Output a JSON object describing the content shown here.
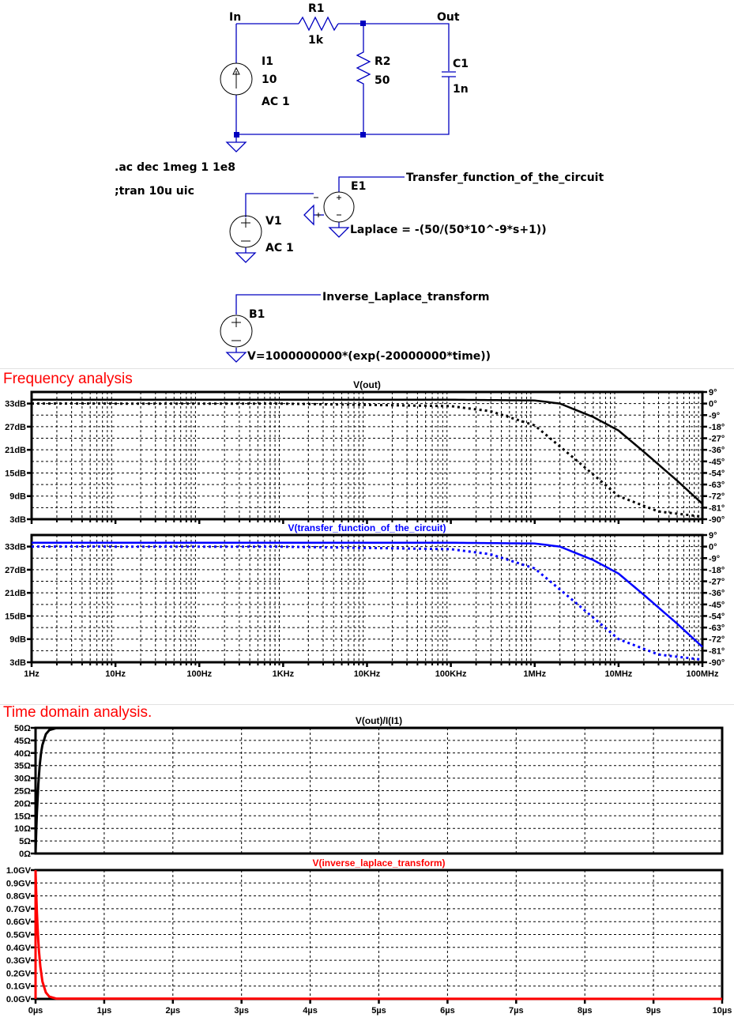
{
  "schematic": {
    "nets": {
      "in": "In",
      "out": "Out"
    },
    "R1": {
      "name": "R1",
      "value": "1k"
    },
    "R2": {
      "name": "R2",
      "value": "50"
    },
    "C1": {
      "name": "C1",
      "value": "1n"
    },
    "I1": {
      "name": "I1",
      "value": "10",
      "ac": "AC 1"
    },
    "directives": [
      ".ac dec 1meg 1 1e8",
      ";tran 10u uic"
    ],
    "V1": {
      "name": "V1",
      "ac": "AC 1"
    },
    "E1": {
      "name": "E1",
      "net_label": "Transfer_function_of_the_circuit",
      "expr": "Laplace = -(50/(50*10^-9*s+1))"
    },
    "B1": {
      "name": "B1",
      "net_label": "Inverse_Laplace_transform",
      "expr": "V=1000000000*(exp(-20000000*time))"
    },
    "wire_color": "#0000c0"
  },
  "sections": {
    "frequency": "Frequency analysis",
    "time": "Time domain analysis."
  },
  "chart_data": [
    {
      "type": "line",
      "title": "V(out)",
      "title_color": "#000000",
      "xscale": "log",
      "xlim": [
        1,
        100000000
      ],
      "x_ticks": [
        "1Hz",
        "10Hz",
        "100Hz",
        "1KHz",
        "10KHz",
        "100KHz",
        "1MHz",
        "10MHz",
        "100MHz"
      ],
      "y_ticks_left": [
        "33dB",
        "27dB",
        "21dB",
        "15dB",
        "9dB",
        "3dB"
      ],
      "ylim_left": [
        3,
        36
      ],
      "y_ticks_right": [
        "9°",
        "0°",
        "-9°",
        "-18°",
        "-27°",
        "-36°",
        "-45°",
        "-54°",
        "-63°",
        "-72°",
        "-81°",
        "-90°"
      ],
      "ylim_right": [
        -90,
        9
      ],
      "grid": true,
      "series": [
        {
          "name": "magnitude (dB)",
          "style": "solid",
          "color": "#000000",
          "x": [
            1,
            100000,
            1000000,
            2000000,
            5000000,
            10000000,
            20000000,
            50000000,
            100000000
          ],
          "y": [
            34,
            34,
            33.8,
            33,
            29.5,
            26,
            20.5,
            13,
            7
          ]
        },
        {
          "name": "phase (deg)",
          "style": "dotted",
          "color": "#000000",
          "x": [
            1,
            1000,
            100000,
            300000,
            1000000,
            3000000,
            10000000,
            30000000,
            100000000
          ],
          "y": [
            0,
            -0.1,
            -2,
            -6,
            -17,
            -43,
            -72,
            -84,
            -88
          ]
        }
      ]
    },
    {
      "type": "line",
      "title": "V(transfer_function_of_the_circuit)",
      "title_color": "#0000ff",
      "xscale": "log",
      "xlim": [
        1,
        100000000
      ],
      "x_ticks": [
        "1Hz",
        "10Hz",
        "100Hz",
        "1KHz",
        "10KHz",
        "100KHz",
        "1MHz",
        "10MHz",
        "100MHz"
      ],
      "y_ticks_left": [
        "33dB",
        "27dB",
        "21dB",
        "15dB",
        "9dB",
        "3dB"
      ],
      "ylim_left": [
        3,
        36
      ],
      "y_ticks_right": [
        "9°",
        "0°",
        "-9°",
        "-18°",
        "-27°",
        "-36°",
        "-45°",
        "-54°",
        "-63°",
        "-72°",
        "-81°",
        "-90°"
      ],
      "ylim_right": [
        -90,
        9
      ],
      "grid": true,
      "series": [
        {
          "name": "magnitude (dB)",
          "style": "solid",
          "color": "#0000ff",
          "x": [
            1,
            100000,
            1000000,
            2000000,
            5000000,
            10000000,
            20000000,
            50000000,
            100000000
          ],
          "y": [
            34,
            34,
            33.8,
            33,
            29.5,
            26,
            20.5,
            13,
            7
          ]
        },
        {
          "name": "phase (deg)",
          "style": "dotted",
          "color": "#0000ff",
          "x": [
            1,
            1000,
            100000,
            300000,
            1000000,
            3000000,
            10000000,
            30000000,
            100000000
          ],
          "y": [
            0,
            -0.1,
            -2,
            -6,
            -17,
            -43,
            -72,
            -84,
            -88
          ]
        }
      ]
    },
    {
      "type": "line",
      "title": "V(out)/I(I1)",
      "title_color": "#000000",
      "xlim": [
        0,
        10
      ],
      "xunit": "µs",
      "y_ticks": [
        "50Ω",
        "45Ω",
        "40Ω",
        "35Ω",
        "30Ω",
        "25Ω",
        "20Ω",
        "15Ω",
        "10Ω",
        "5Ω",
        "0Ω"
      ],
      "ylim": [
        0,
        50
      ],
      "grid": true,
      "series": [
        {
          "name": "V(out)/I(I1)",
          "color": "#000000",
          "x": [
            0,
            0.01,
            0.02,
            0.04,
            0.06,
            0.08,
            0.1,
            0.15,
            0.2,
            0.3,
            10
          ],
          "y": [
            0,
            9.1,
            16.5,
            27.5,
            35,
            40,
            43.2,
            47.5,
            49.1,
            49.9,
            50
          ]
        }
      ]
    },
    {
      "type": "line",
      "title": "V(inverse_laplace_transform)",
      "title_color": "#ff0000",
      "xlim": [
        0,
        10
      ],
      "x_ticks": [
        "0µs",
        "1µs",
        "2µs",
        "3µs",
        "4µs",
        "5µs",
        "6µs",
        "7µs",
        "8µs",
        "9µs",
        "10µs"
      ],
      "y_ticks": [
        "1.0GV",
        "0.9GV",
        "0.8GV",
        "0.7GV",
        "0.6GV",
        "0.5GV",
        "0.4GV",
        "0.3GV",
        "0.2GV",
        "0.1GV",
        "0.0GV"
      ],
      "ylim": [
        0,
        1.0
      ],
      "grid": true,
      "series": [
        {
          "name": "V(inverse_laplace_transform)",
          "color": "#ff0000",
          "x": [
            0,
            0.005,
            0.01,
            0.02,
            0.03,
            0.04,
            0.05,
            0.07,
            0.1,
            0.15,
            0.2,
            0.3,
            10
          ],
          "y": [
            1.0,
            0.905,
            0.82,
            0.67,
            0.55,
            0.45,
            0.37,
            0.25,
            0.135,
            0.05,
            0.018,
            0.0025,
            0
          ]
        }
      ]
    }
  ]
}
